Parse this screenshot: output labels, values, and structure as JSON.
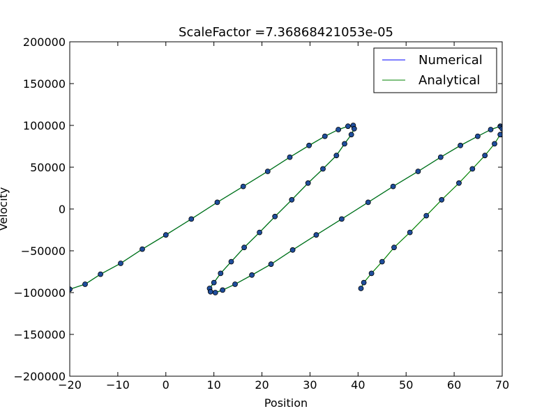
{
  "colors": {
    "numerical": "#0000ff",
    "analytical": "#008000",
    "marker_fill": "#1f4e9c",
    "marker_edge": "#000000",
    "axes": "#000000",
    "background": "#ffffff"
  },
  "chart_data": {
    "type": "scatter",
    "title": "ScaleFactor =7.36868421053e-05",
    "xlabel": "Position",
    "ylabel": "Velocity",
    "xlim": [
      -20,
      70
    ],
    "ylim": [
      -200000,
      200000
    ],
    "xticks": [
      -20,
      -10,
      0,
      10,
      20,
      30,
      40,
      50,
      60,
      70
    ],
    "yticks": [
      -200000,
      -150000,
      -100000,
      -50000,
      0,
      50000,
      100000,
      150000,
      200000
    ],
    "xtick_labels": [
      "−20",
      "−10",
      "0",
      "10",
      "20",
      "30",
      "40",
      "50",
      "60",
      "70"
    ],
    "ytick_labels": [
      "−200000",
      "−150000",
      "−100000",
      "−50000",
      "0",
      "50000",
      "100000",
      "150000",
      "200000"
    ],
    "grid": false,
    "legend_position": "top-right",
    "legend": [
      "Numerical",
      "Analytical"
    ],
    "series": [
      {
        "name": "Numerical",
        "style": "line",
        "color": "#0000ff",
        "points": [
          [
            -20,
            -96000
          ],
          [
            -16.8,
            -90000
          ],
          [
            -13.6,
            -78000
          ],
          [
            -9.4,
            -65000
          ],
          [
            -4.9,
            -48000
          ],
          [
            0.0,
            -31000
          ],
          [
            5.3,
            -12000
          ],
          [
            10.7,
            8000
          ],
          [
            16.1,
            27000
          ],
          [
            21.2,
            45000
          ],
          [
            25.8,
            62000
          ],
          [
            29.8,
            76000
          ],
          [
            33.1,
            87000
          ],
          [
            35.9,
            95000
          ],
          [
            37.9,
            99000
          ],
          [
            39.0,
            100000
          ],
          [
            39.2,
            96000
          ],
          [
            38.6,
            89000
          ],
          [
            37.2,
            78000
          ],
          [
            35.5,
            64000
          ],
          [
            32.7,
            48000
          ],
          [
            29.6,
            31000
          ],
          [
            26.2,
            11000
          ],
          [
            22.7,
            -9000
          ],
          [
            19.5,
            -28000
          ],
          [
            16.3,
            -46000
          ],
          [
            13.6,
            -63000
          ],
          [
            11.4,
            -77000
          ],
          [
            10.0,
            -88000
          ],
          [
            9.1,
            -95000
          ],
          [
            9.3,
            -99000
          ],
          [
            10.3,
            -100000
          ],
          [
            11.8,
            -97000
          ],
          [
            14.4,
            -90000
          ],
          [
            17.9,
            -79000
          ],
          [
            21.9,
            -66000
          ],
          [
            26.4,
            -49000
          ],
          [
            31.3,
            -31000
          ],
          [
            36.6,
            -12000
          ],
          [
            42.1,
            8000
          ],
          [
            47.3,
            27000
          ],
          [
            52.5,
            45000
          ],
          [
            57.2,
            62000
          ],
          [
            61.3,
            76000
          ],
          [
            64.9,
            87000
          ],
          [
            67.6,
            95000
          ],
          [
            69.6,
            99000
          ],
          [
            70.0,
            96000
          ],
          [
            70.0,
            89000
          ]
        ]
      },
      {
        "name": "Analytical",
        "style": "line+markers",
        "color": "#008000",
        "points": [
          [
            -20,
            -96000
          ],
          [
            -16.8,
            -90000
          ],
          [
            -13.6,
            -78000
          ],
          [
            -9.4,
            -65000
          ],
          [
            -4.9,
            -48000
          ],
          [
            0.0,
            -31000
          ],
          [
            5.3,
            -12000
          ],
          [
            10.7,
            8000
          ],
          [
            16.1,
            27000
          ],
          [
            21.2,
            45000
          ],
          [
            25.8,
            62000
          ],
          [
            29.8,
            76000
          ],
          [
            33.1,
            87000
          ],
          [
            35.9,
            95000
          ],
          [
            37.9,
            99000
          ],
          [
            39.0,
            100000
          ],
          [
            39.2,
            96000
          ],
          [
            38.6,
            89000
          ],
          [
            37.2,
            78000
          ],
          [
            35.5,
            64000
          ],
          [
            32.7,
            48000
          ],
          [
            29.6,
            31000
          ],
          [
            26.2,
            11000
          ],
          [
            22.7,
            -9000
          ],
          [
            19.5,
            -28000
          ],
          [
            16.3,
            -46000
          ],
          [
            13.6,
            -63000
          ],
          [
            11.4,
            -77000
          ],
          [
            10.0,
            -88000
          ],
          [
            9.1,
            -95000
          ],
          [
            9.3,
            -99000
          ],
          [
            10.3,
            -100000
          ],
          [
            11.8,
            -97000
          ],
          [
            14.4,
            -90000
          ],
          [
            17.9,
            -79000
          ],
          [
            21.9,
            -66000
          ],
          [
            26.4,
            -49000
          ],
          [
            31.3,
            -31000
          ],
          [
            36.6,
            -12000
          ],
          [
            42.1,
            8000
          ],
          [
            47.3,
            27000
          ],
          [
            52.5,
            45000
          ],
          [
            57.2,
            62000
          ],
          [
            61.3,
            76000
          ],
          [
            64.9,
            87000
          ],
          [
            67.6,
            95000
          ],
          [
            69.6,
            99000
          ],
          [
            70.0,
            96000
          ],
          [
            70.0,
            89000
          ]
        ],
        "markers_segment2": [
          [
            40.6,
            -95000
          ],
          [
            41.2,
            -88000
          ],
          [
            42.8,
            -77000
          ],
          [
            45.0,
            -63000
          ],
          [
            47.5,
            -46000
          ],
          [
            50.8,
            -28000
          ],
          [
            54.2,
            -8000
          ],
          [
            57.4,
            11000
          ],
          [
            61.0,
            31000
          ],
          [
            63.8,
            48000
          ],
          [
            66.4,
            64000
          ],
          [
            68.4,
            78000
          ],
          [
            69.6,
            89000
          ]
        ]
      }
    ]
  }
}
